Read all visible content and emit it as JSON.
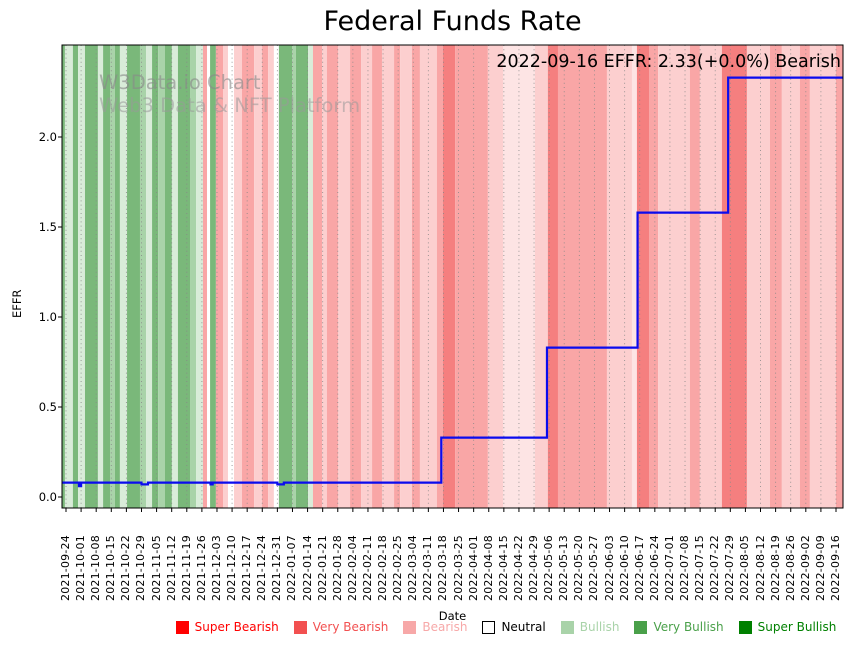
{
  "title": "Federal Funds Rate",
  "annotation": "2022-09-16 EFFR: 2.33(+0.0%) Bearish",
  "watermark": {
    "line1": "W3Data.io Chart",
    "line2": "Web3 Data & NFT Platform"
  },
  "axes": {
    "x_label": "Date",
    "y_label": "EFFR",
    "y_tick_labels": [
      "0.0",
      "0.5",
      "1.0",
      "1.5",
      "2.0"
    ]
  },
  "legend": [
    {
      "label": "Super Bearish",
      "color": "#ff0000",
      "text_color": "#ff0000",
      "border": "#ff0000"
    },
    {
      "label": "Very Bearish",
      "color": "#f25050",
      "text_color": "#f25050",
      "border": "#f25050"
    },
    {
      "label": "Bearish",
      "color": "#f7a8a8",
      "text_color": "#f7a8a8",
      "border": "#f7a8a8"
    },
    {
      "label": "Neutral",
      "color": "#ffffff",
      "text_color": "#000000",
      "border": "#000000"
    },
    {
      "label": "Bullish",
      "color": "#a9d3a9",
      "text_color": "#a9d3a9",
      "border": "#a9d3a9"
    },
    {
      "label": "Very Bullish",
      "color": "#4aa04a",
      "text_color": "#4aa04a",
      "border": "#4aa04a"
    },
    {
      "label": "Super Bullish",
      "color": "#008000",
      "text_color": "#008000",
      "border": "#008000"
    }
  ],
  "chart_data": {
    "type": "line",
    "title": "Federal Funds Rate",
    "xlabel": "Date",
    "ylabel": "EFFR",
    "ylim": [
      -0.06,
      2.51
    ],
    "y_ticks": [
      0.0,
      0.5,
      1.0,
      1.5,
      2.0
    ],
    "x_tick_rotation": 90,
    "grid": "weekly dotted vertical gridlines",
    "legend_position": "bottom center",
    "line_color": "#0b0bee",
    "gridline_color": "#888888",
    "x_start_date": "2021-09-24",
    "x_end_date": "2022-09-16",
    "x_ticks": [
      "2021-09-24",
      "2021-10-01",
      "2021-10-08",
      "2021-10-15",
      "2021-10-22",
      "2021-10-29",
      "2021-11-05",
      "2021-11-12",
      "2021-11-19",
      "2021-11-26",
      "2021-12-03",
      "2021-12-10",
      "2021-12-17",
      "2021-12-24",
      "2021-12-31",
      "2022-01-07",
      "2022-01-14",
      "2022-01-21",
      "2022-01-28",
      "2022-02-04",
      "2022-02-11",
      "2022-02-18",
      "2022-02-25",
      "2022-03-04",
      "2022-03-11",
      "2022-03-18",
      "2022-03-25",
      "2022-04-01",
      "2022-04-08",
      "2022-04-15",
      "2022-04-22",
      "2022-04-29",
      "2022-05-06",
      "2022-05-13",
      "2022-05-20",
      "2022-05-27",
      "2022-06-03",
      "2022-06-10",
      "2022-06-17",
      "2022-06-24",
      "2022-07-01",
      "2022-07-08",
      "2022-07-15",
      "2022-07-22",
      "2022-07-29",
      "2022-08-05",
      "2022-08-12",
      "2022-08-19",
      "2022-08-26",
      "2022-09-02",
      "2022-09-09",
      "2022-09-16"
    ],
    "series": [
      {
        "name": "EFFR",
        "step": "post",
        "points": [
          [
            "2021-09-24",
            0.08
          ],
          [
            "2021-09-30",
            0.06
          ],
          [
            "2021-10-01",
            0.08
          ],
          [
            "2021-10-29",
            0.07
          ],
          [
            "2021-11-01",
            0.08
          ],
          [
            "2021-11-30",
            0.07
          ],
          [
            "2021-12-01",
            0.08
          ],
          [
            "2021-12-31",
            0.07
          ],
          [
            "2022-01-03",
            0.08
          ],
          [
            "2022-03-17",
            0.33
          ],
          [
            "2022-05-05",
            0.83
          ],
          [
            "2022-06-16",
            1.58
          ],
          [
            "2022-07-28",
            2.33
          ],
          [
            "2022-09-16",
            2.33
          ]
        ]
      }
    ],
    "band_palette": {
      "vb": {
        "name": "Very Bullish",
        "color": "#7ab87a"
      },
      "bu": {
        "name": "Bullish",
        "color": "#a9d3a9"
      },
      "pg": {
        "name": "Bullish (pale)",
        "color": "#d9ecd9"
      },
      "wh": {
        "name": "Neutral",
        "color": "#ffffff"
      },
      "pp": {
        "name": "Bearish (pale)",
        "color": "#fde4e4"
      },
      "bl": {
        "name": "Bearish (light)",
        "color": "#fccfcf"
      },
      "bm": {
        "name": "Bearish",
        "color": "#f9a6a6"
      },
      "vr": {
        "name": "Very Bearish",
        "color": "#f57f7f"
      }
    },
    "sentiment_bands": [
      [
        -1.9,
        -0.5,
        "vb"
      ],
      [
        -0.5,
        3.2,
        "pg"
      ],
      [
        3.2,
        5.6,
        "vb"
      ],
      [
        5.6,
        8.8,
        "pg"
      ],
      [
        8.8,
        14.8,
        "vb"
      ],
      [
        14.8,
        17.2,
        "pg"
      ],
      [
        17.2,
        20.4,
        "vb"
      ],
      [
        20.4,
        22.7,
        "bu"
      ],
      [
        22.7,
        25,
        "vb"
      ],
      [
        25,
        28.3,
        "pg"
      ],
      [
        28.3,
        34.3,
        "vb"
      ],
      [
        34.3,
        37.1,
        "bu"
      ],
      [
        37.1,
        39.9,
        "pg"
      ],
      [
        39.9,
        42.7,
        "vb"
      ],
      [
        42.7,
        45.9,
        "bu"
      ],
      [
        45.9,
        49.1,
        "vb"
      ],
      [
        49.1,
        51.9,
        "pg"
      ],
      [
        51.9,
        57.5,
        "vb"
      ],
      [
        57.5,
        60.3,
        "bu"
      ],
      [
        60.3,
        63.5,
        "pg"
      ],
      [
        63.5,
        65.4,
        "bm"
      ],
      [
        65.4,
        66.8,
        "wh"
      ],
      [
        66.8,
        69.5,
        "vb"
      ],
      [
        69.5,
        72.8,
        "bm"
      ],
      [
        72.8,
        75.1,
        "bl"
      ],
      [
        75.1,
        77.9,
        "wh"
      ],
      [
        77.9,
        81.6,
        "bl"
      ],
      [
        81.6,
        87.2,
        "bm"
      ],
      [
        87.2,
        90.9,
        "bl"
      ],
      [
        90.9,
        93.7,
        "bm"
      ],
      [
        93.7,
        96.4,
        "bl"
      ],
      [
        96.4,
        98.7,
        "wh"
      ],
      [
        98.7,
        104.8,
        "vb"
      ],
      [
        104.8,
        106.6,
        "bu"
      ],
      [
        106.6,
        112.2,
        "vb"
      ],
      [
        112.2,
        114.5,
        "pg"
      ],
      [
        114.5,
        118.7,
        "bm"
      ],
      [
        118.7,
        121,
        "bl"
      ],
      [
        121,
        126.1,
        "bm"
      ],
      [
        126.1,
        131.7,
        "bl"
      ],
      [
        131.7,
        136.8,
        "bm"
      ],
      [
        136.8,
        141.9,
        "bl"
      ],
      [
        141.9,
        146.5,
        "bm"
      ],
      [
        146.5,
        152.1,
        "bl"
      ],
      [
        152.1,
        154.9,
        "bm"
      ],
      [
        154.9,
        160.4,
        "bl"
      ],
      [
        160.4,
        164.1,
        "bm"
      ],
      [
        164.1,
        172,
        "bl"
      ],
      [
        172,
        174.8,
        "bm"
      ],
      [
        174.8,
        180.4,
        "vr"
      ],
      [
        180.4,
        195.6,
        "bm"
      ],
      [
        195.6,
        202.6,
        "bl"
      ],
      [
        202.6,
        217.4,
        "pp"
      ],
      [
        217.4,
        223.4,
        "bl"
      ],
      [
        223.4,
        228.1,
        "vr"
      ],
      [
        228.1,
        250.8,
        "bm"
      ],
      [
        250.8,
        262.4,
        "bl"
      ],
      [
        262.4,
        264.7,
        "pp"
      ],
      [
        264.7,
        270.3,
        "vr"
      ],
      [
        270.3,
        274.5,
        "bm"
      ],
      [
        274.5,
        289.3,
        "bl"
      ],
      [
        289.3,
        293.9,
        "bm"
      ],
      [
        293.9,
        304.1,
        "bl"
      ],
      [
        304.1,
        315.7,
        "vr"
      ],
      [
        315.7,
        326.4,
        "bl"
      ],
      [
        326.4,
        331.9,
        "bm"
      ],
      [
        331.9,
        340.3,
        "bl"
      ],
      [
        340.3,
        344.9,
        "bm"
      ],
      [
        344.9,
        357,
        "bl"
      ],
      [
        357,
        360.2,
        "bm"
      ]
    ]
  }
}
